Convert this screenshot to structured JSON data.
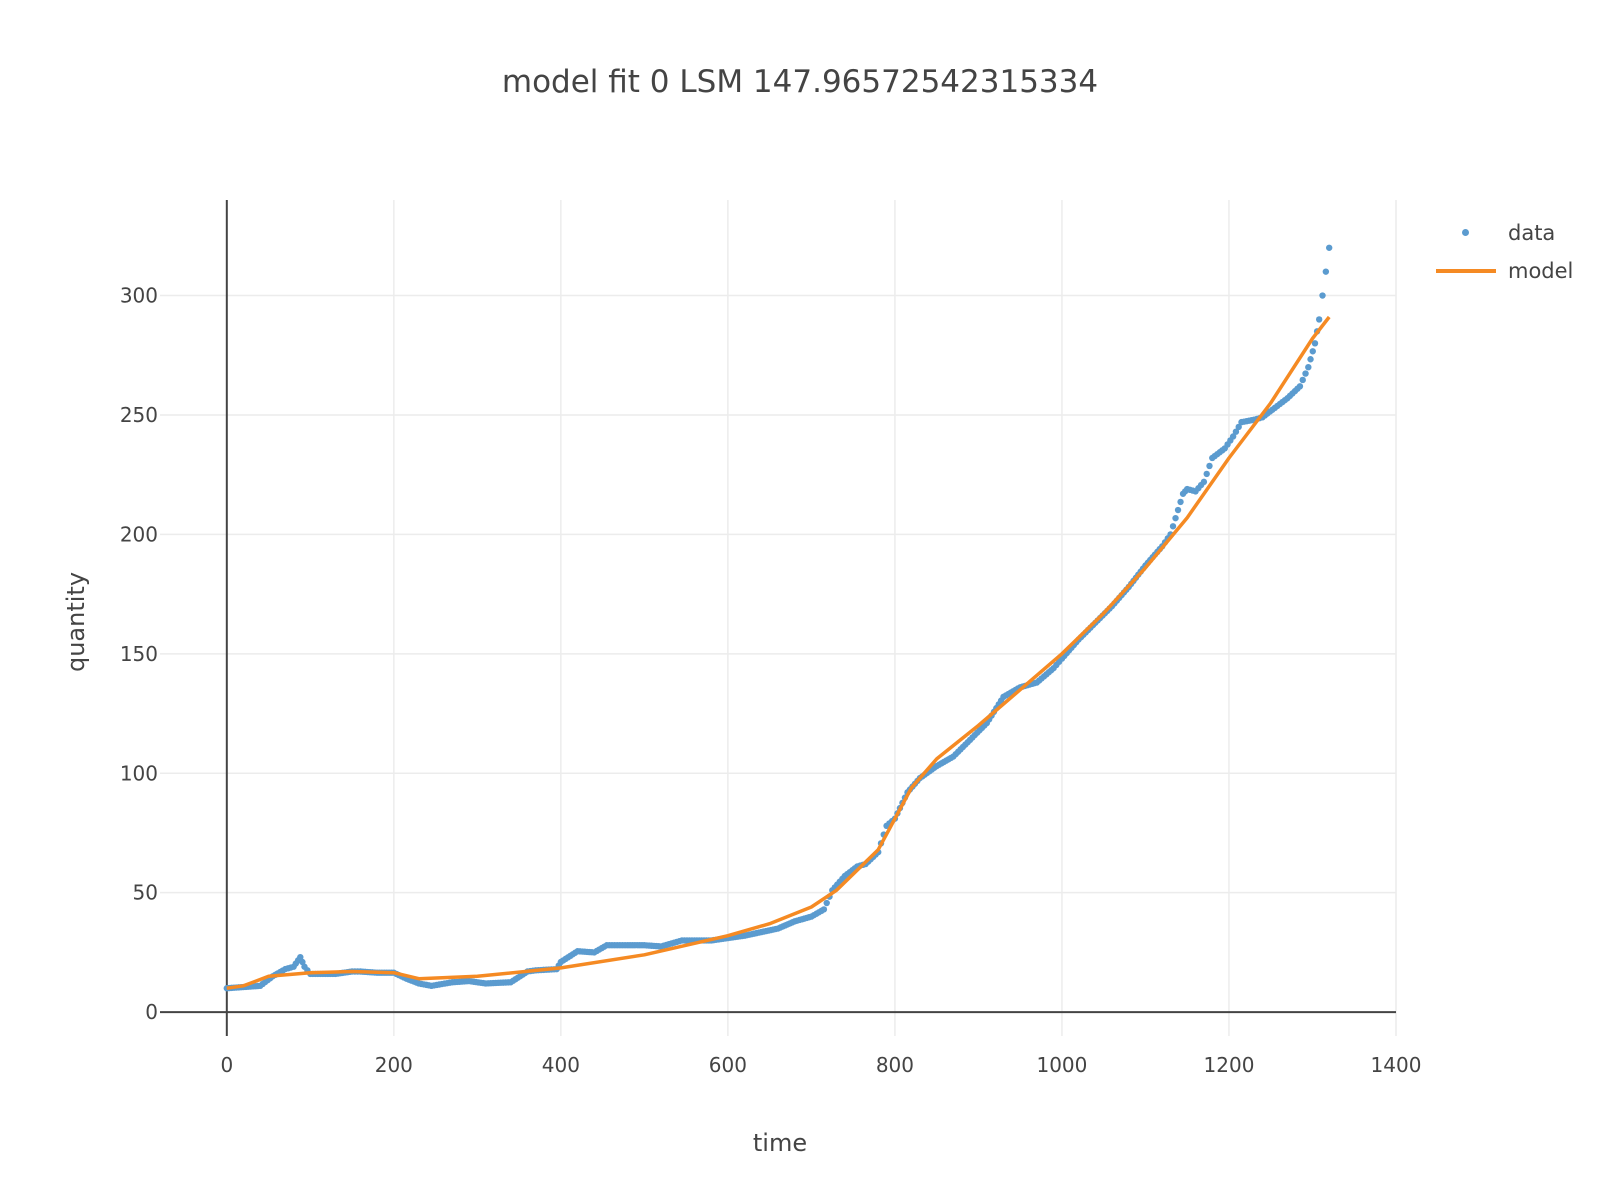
{
  "title": "model fit 0   LSM 147.96572542315334",
  "chart_data": {
    "type": "scatter",
    "xlabel": "time",
    "ylabel": "quantity",
    "xlim": [
      -80,
      1400
    ],
    "ylim": [
      -10,
      340
    ],
    "xticks": [
      0,
      200,
      400,
      600,
      800,
      1000,
      1200,
      1400
    ],
    "yticks": [
      0,
      50,
      100,
      150,
      200,
      250,
      300
    ],
    "grid": true,
    "legend_position": "top-right",
    "series": [
      {
        "name": "data",
        "mode": "markers",
        "color": "#5b9bcf",
        "points": [
          [
            0,
            10
          ],
          [
            20,
            10.5
          ],
          [
            40,
            11
          ],
          [
            55,
            15
          ],
          [
            70,
            18
          ],
          [
            80,
            19
          ],
          [
            88,
            23
          ],
          [
            93,
            19
          ],
          [
            100,
            16
          ],
          [
            130,
            16
          ],
          [
            150,
            17
          ],
          [
            160,
            17
          ],
          [
            180,
            16.5
          ],
          [
            200,
            16.5
          ],
          [
            215,
            14
          ],
          [
            230,
            12
          ],
          [
            245,
            11
          ],
          [
            270,
            12.5
          ],
          [
            290,
            13
          ],
          [
            310,
            12
          ],
          [
            340,
            12.5
          ],
          [
            360,
            17
          ],
          [
            370,
            17.5
          ],
          [
            395,
            18
          ],
          [
            400,
            21
          ],
          [
            420,
            25.5
          ],
          [
            440,
            25
          ],
          [
            455,
            28
          ],
          [
            480,
            28
          ],
          [
            500,
            28
          ],
          [
            520,
            27.5
          ],
          [
            545,
            30
          ],
          [
            560,
            30
          ],
          [
            580,
            30
          ],
          [
            600,
            31
          ],
          [
            620,
            32
          ],
          [
            640,
            33.5
          ],
          [
            660,
            35
          ],
          [
            680,
            38
          ],
          [
            700,
            40
          ],
          [
            715,
            43
          ],
          [
            725,
            51
          ],
          [
            740,
            57
          ],
          [
            755,
            61
          ],
          [
            765,
            62
          ],
          [
            780,
            67
          ],
          [
            790,
            78
          ],
          [
            800,
            81
          ],
          [
            815,
            92
          ],
          [
            830,
            98
          ],
          [
            850,
            103
          ],
          [
            870,
            107
          ],
          [
            890,
            114
          ],
          [
            910,
            121
          ],
          [
            930,
            132
          ],
          [
            950,
            136
          ],
          [
            970,
            138
          ],
          [
            990,
            144
          ],
          [
            1000,
            148
          ],
          [
            1020,
            156
          ],
          [
            1040,
            163
          ],
          [
            1060,
            170
          ],
          [
            1080,
            178
          ],
          [
            1100,
            187
          ],
          [
            1120,
            195
          ],
          [
            1130,
            200
          ],
          [
            1145,
            217
          ],
          [
            1150,
            219
          ],
          [
            1160,
            218
          ],
          [
            1170,
            222
          ],
          [
            1180,
            232
          ],
          [
            1195,
            236
          ],
          [
            1205,
            241
          ],
          [
            1215,
            247
          ],
          [
            1230,
            248
          ],
          [
            1240,
            249
          ],
          [
            1255,
            253
          ],
          [
            1270,
            257
          ],
          [
            1285,
            262
          ],
          [
            1295,
            270
          ],
          [
            1303,
            280
          ],
          [
            1308,
            290
          ],
          [
            1312,
            300
          ],
          [
            1316,
            310
          ],
          [
            1320,
            320
          ]
        ]
      },
      {
        "name": "model",
        "mode": "lines",
        "color": "#f58a23",
        "points": [
          [
            0,
            10
          ],
          [
            20,
            11
          ],
          [
            50,
            15
          ],
          [
            100,
            16.5
          ],
          [
            150,
            17
          ],
          [
            200,
            16.5
          ],
          [
            230,
            14
          ],
          [
            300,
            15
          ],
          [
            400,
            18.5
          ],
          [
            500,
            24
          ],
          [
            600,
            32
          ],
          [
            650,
            37
          ],
          [
            700,
            44
          ],
          [
            730,
            51
          ],
          [
            780,
            68
          ],
          [
            820,
            94
          ],
          [
            850,
            106
          ],
          [
            900,
            120
          ],
          [
            950,
            135
          ],
          [
            1000,
            150
          ],
          [
            1050,
            167
          ],
          [
            1100,
            186
          ],
          [
            1150,
            207
          ],
          [
            1200,
            232
          ],
          [
            1250,
            255
          ],
          [
            1300,
            282
          ],
          [
            1320,
            291
          ]
        ]
      }
    ]
  }
}
